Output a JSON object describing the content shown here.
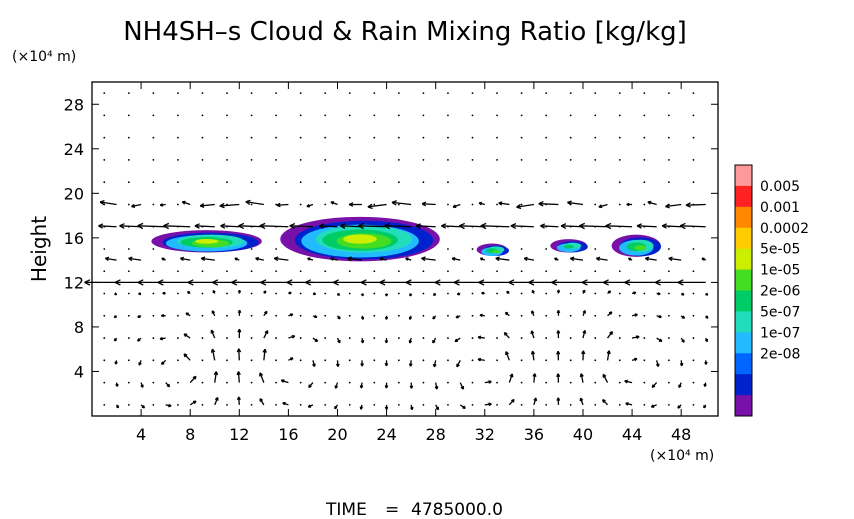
{
  "chart_data": {
    "type": "heatmap",
    "title": "NH4SH–s Cloud & Rain Mixing Ratio [kg/kg]",
    "xlabel": "",
    "ylabel": "Height",
    "x_unit": "(×10⁴ m)",
    "y_unit": "(×10⁴ m)",
    "xlim": [
      0,
      51
    ],
    "ylim": [
      0,
      30
    ],
    "x_ticks": [
      4,
      8,
      12,
      16,
      20,
      24,
      28,
      32,
      36,
      40,
      44,
      48
    ],
    "y_ticks": [
      4,
      8,
      12,
      16,
      20,
      24,
      28
    ],
    "colorbar": {
      "labels": [
        "0.005",
        "0.001",
        "0.0002",
        "5e-05",
        "1e-05",
        "2e-06",
        "5e-07",
        "1e-07",
        "2e-08"
      ],
      "colors": [
        "#ff9999",
        "#ff2222",
        "#ff8800",
        "#ffcc00",
        "#ccee00",
        "#44dd22",
        "#00cc66",
        "#22ddbb",
        "#22bbff",
        "#0066ff",
        "#0022cc",
        "#7711aa"
      ]
    },
    "cloud_patches": [
      {
        "x": [
          5,
          14
        ],
        "y": [
          14.6,
          16.6
        ],
        "peak": "5e-05"
      },
      {
        "x": [
          15.5,
          28.5
        ],
        "y": [
          13.8,
          17.8
        ],
        "peak": "5e-05"
      },
      {
        "x": [
          31.5,
          34
        ],
        "y": [
          14.3,
          15.4
        ],
        "peak": "1e-05"
      },
      {
        "x": [
          37.5,
          40.5
        ],
        "y": [
          14.6,
          15.8
        ],
        "peak": "2e-06"
      },
      {
        "x": [
          42.5,
          46.5
        ],
        "y": [
          14.2,
          16.2
        ],
        "peak": "1e-05"
      }
    ],
    "wind_vectors": "arrow field, strong westward jet near 12 and 16–19 km-scale heights, circulation cells near x≈8, 16, 32, 44"
  },
  "footer": {
    "time_label": "TIME",
    "time_eq": "=",
    "time_value": "4785000.0"
  }
}
